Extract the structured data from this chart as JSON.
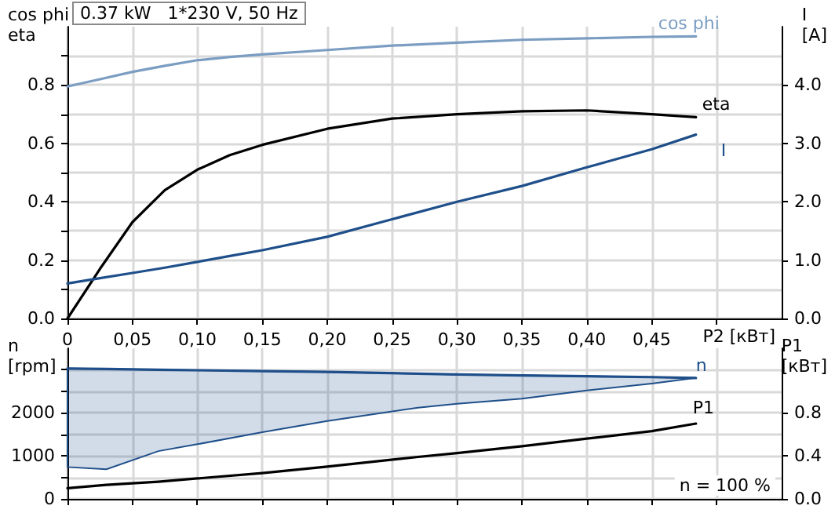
{
  "chart_data": [
    {
      "type": "line",
      "title": "0.37 kW   1*230 V, 50 Hz",
      "xlabel": "P2 [кВт]",
      "ylabel": "cos phi\neta",
      "y2label": "I\n[A]",
      "grid": true,
      "legend": false,
      "marker": "none",
      "line_style": "solid",
      "xlim": [
        0,
        0.55
      ],
      "xticks": [
        {
          "value": 0,
          "label": "0"
        },
        {
          "value": 0.05,
          "label": "0,05"
        },
        {
          "value": 0.1,
          "label": "0,10"
        },
        {
          "value": 0.15,
          "label": "0,15"
        },
        {
          "value": 0.2,
          "label": "0,20"
        },
        {
          "value": 0.25,
          "label": "0,25"
        },
        {
          "value": 0.3,
          "label": "0,30"
        },
        {
          "value": 0.35,
          "label": "0,35"
        },
        {
          "value": 0.4,
          "label": "0,40"
        },
        {
          "value": 0.45,
          "label": "0,45"
        },
        {
          "value": 0.5,
          "label": null
        }
      ],
      "ylim": [
        0,
        1
      ],
      "yticks": [
        {
          "value": 0,
          "label": "0.0"
        },
        {
          "value": 0.1,
          "label": null
        },
        {
          "value": 0.2,
          "label": "0.2"
        },
        {
          "value": 0.3,
          "label": null
        },
        {
          "value": 0.4,
          "label": "0.4"
        },
        {
          "value": 0.5,
          "label": null
        },
        {
          "value": 0.6,
          "label": "0.6"
        },
        {
          "value": 0.7,
          "label": null
        },
        {
          "value": 0.8,
          "label": "0.8"
        },
        {
          "value": 0.9,
          "label": null
        }
      ],
      "y2lim": [
        0,
        5
      ],
      "y2ticks": [
        {
          "value": 0,
          "label": "0.0"
        },
        {
          "value": 1,
          "label": "1.0"
        },
        {
          "value": 2,
          "label": "2.0"
        },
        {
          "value": 3,
          "label": "3.0"
        },
        {
          "value": 4,
          "label": "4.0"
        }
      ],
      "x": [
        0,
        0.025,
        0.05,
        0.075,
        0.1,
        0.125,
        0.15,
        0.2,
        0.25,
        0.3,
        0.35,
        0.4,
        0.45,
        0.484
      ],
      "series": [
        {
          "name": "cos phi",
          "color": "#7b9dc2",
          "values": [
            0.795,
            0.82,
            0.845,
            0.866,
            0.885,
            0.896,
            0.905,
            0.92,
            0.935,
            0.945,
            0.955,
            0.96,
            0.965,
            0.967
          ]
        },
        {
          "name": "eta",
          "color": "#000000",
          "values": [
            0,
            0.17,
            0.33,
            0.44,
            0.51,
            0.56,
            0.595,
            0.65,
            0.685,
            0.7,
            0.71,
            0.713,
            0.7,
            0.69
          ]
        },
        {
          "name": "I",
          "color": "#1f4f8a",
          "axis": "y2",
          "values": [
            0.6,
            0.69,
            0.78,
            0.87,
            0.97,
            1.07,
            1.17,
            1.4,
            1.7,
            2.0,
            2.27,
            2.59,
            2.9,
            3.15
          ]
        }
      ]
    },
    {
      "type": "line",
      "ylabel": "n\n[rpm]",
      "y2label": "P1\n[кВт]",
      "grid": true,
      "legend": false,
      "marker": "none",
      "line_style": "solid",
      "tick_labels": "y",
      "annotations": [
        "n = 100 %"
      ],
      "xlim": [
        0,
        0.55
      ],
      "xticks": [
        0,
        0.05,
        0.1,
        0.15,
        0.2,
        0.25,
        0.3,
        0.35,
        0.4,
        0.45,
        0.5
      ],
      "ylim": [
        0,
        3500
      ],
      "yticks": [
        0,
        {
          "value": 500,
          "label": null
        },
        1000,
        {
          "value": 1500,
          "label": null
        },
        2000,
        {
          "value": 2500,
          "label": null
        },
        {
          "value": 3000,
          "label": null
        }
      ],
      "y2lim": [
        0,
        1.4
      ],
      "y2ticks": [
        {
          "value": 0,
          "label": "0.0"
        },
        {
          "value": 0.4,
          "label": "0.4"
        },
        {
          "value": 0.8,
          "label": "0.8"
        }
      ],
      "x": [
        0,
        0.03,
        0.07,
        0.1,
        0.15,
        0.2,
        0.27,
        0.3,
        0.35,
        0.4,
        0.45,
        0.484
      ],
      "series": [
        {
          "name": "n",
          "color": "#1f4f8a",
          "values": [
            3030,
            3020,
            3000,
            2990,
            2970,
            2950,
            2910,
            2890,
            2870,
            2850,
            2830,
            2810
          ],
          "lower": [
            740,
            690,
            1110,
            1270,
            1550,
            1810,
            2120,
            2210,
            2330,
            2520,
            2680,
            2810
          ],
          "upper": [
            3030,
            3020,
            3000,
            2990,
            2970,
            2950,
            2910,
            2890,
            2870,
            2850,
            2830,
            2810
          ]
        },
        {
          "name": "P1",
          "color": "#000000",
          "axis": "y2",
          "values": [
            0.1,
            0.13,
            0.16,
            0.19,
            0.24,
            0.3,
            0.39,
            0.425,
            0.49,
            0.56,
            0.63,
            0.7
          ]
        }
      ]
    }
  ]
}
